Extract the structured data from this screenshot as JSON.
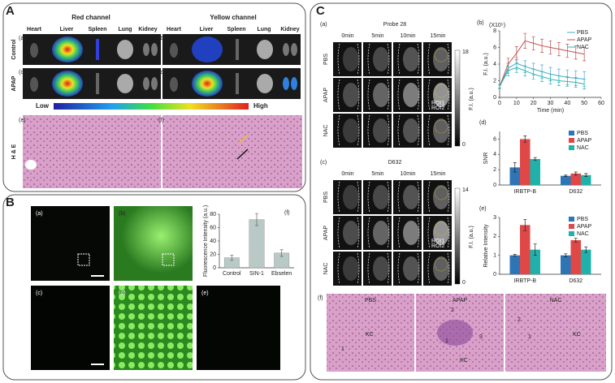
{
  "panel_a": {
    "label": "A",
    "headers": [
      "Red channel",
      "Yellow channel"
    ],
    "organs": [
      "Heart",
      "Liver",
      "Spleen",
      "Lung",
      "Kidney"
    ],
    "sublabels": [
      "(a)",
      "(b)",
      "(c)",
      "(d)",
      "(e)",
      "(f)"
    ],
    "rows": [
      "Control",
      "APAP",
      "H & E"
    ],
    "scale": [
      "Low",
      "High"
    ]
  },
  "panel_b": {
    "label": "B",
    "sublabels": [
      "(a)",
      "(b)",
      "(c)",
      "(d)",
      "(e)"
    ]
  },
  "panel_c": {
    "label": "C",
    "imaging": [
      {
        "sublabel": "(a)",
        "title": "Probe 28",
        "colorbar": [
          18,
          0
        ]
      },
      {
        "sublabel": "(c)",
        "title": "D632",
        "colorbar": [
          14,
          0
        ]
      }
    ],
    "times": [
      "0min",
      "5min",
      "10min",
      "15min"
    ],
    "groups": [
      "PBS",
      "APAP",
      "NAC"
    ],
    "colorbar_label": "F.I. (a.u.)",
    "roi": [
      "ROI1",
      "ROI2"
    ],
    "histology": {
      "sublabel": "(f)",
      "panels": [
        {
          "title": "PBS",
          "notes": [
            "KC",
            "1"
          ]
        },
        {
          "title": "APAP",
          "notes": [
            "2",
            "1",
            "3",
            "KC"
          ]
        },
        {
          "title": "NAC",
          "notes": [
            "2",
            "1",
            "KC"
          ]
        }
      ]
    }
  },
  "chart_data": [
    {
      "type": "bar",
      "label": "(f)",
      "ylabel": "Fluorescence Intensity (a.u.)",
      "categories": [
        "Control",
        "SIN-1",
        "Ebselen"
      ],
      "values": [
        15,
        72,
        22
      ],
      "errors": [
        4,
        9,
        5
      ],
      "color": "#b9c9c5",
      "ylim": [
        0,
        80
      ],
      "yticks": [
        0,
        20,
        40,
        60,
        80
      ]
    },
    {
      "type": "line",
      "label": "(b)",
      "y_multiplier": "(X10⁵)",
      "ylabel": "F.I. (a.u.)",
      "xlabel": "Time (min)",
      "x": [
        0,
        5,
        10,
        15,
        20,
        25,
        30,
        35,
        40,
        45,
        50
      ],
      "series": [
        {
          "name": "PBS",
          "color": "#4aa8d8",
          "values": [
            1.3,
            3.5,
            4.1,
            3.7,
            3.4,
            3.1,
            2.8,
            2.6,
            2.4,
            2.3,
            2.2
          ],
          "errors": [
            0.2,
            0.6,
            0.7,
            0.7,
            0.7,
            0.8,
            0.8,
            0.8,
            0.9,
            0.9,
            0.9
          ]
        },
        {
          "name": "APAP",
          "color": "#c0504d",
          "values": [
            1.3,
            4.0,
            5.3,
            6.8,
            6.5,
            6.2,
            6.0,
            5.8,
            5.6,
            5.4,
            5.2
          ],
          "errors": [
            0.2,
            0.7,
            0.8,
            0.9,
            0.8,
            0.8,
            0.8,
            0.8,
            0.8,
            0.8,
            0.8
          ]
        },
        {
          "name": "NAC",
          "color": "#2bb5b0",
          "values": [
            1.3,
            3.2,
            3.6,
            3.2,
            2.8,
            2.5,
            2.2,
            2.0,
            1.9,
            1.8,
            1.6
          ],
          "errors": [
            0.2,
            0.6,
            0.6,
            0.6,
            0.6,
            0.6,
            0.6,
            0.6,
            0.6,
            0.6,
            0.6
          ]
        }
      ],
      "xlim": [
        0,
        60
      ],
      "xticks": [
        0,
        10,
        20,
        30,
        40,
        50,
        60
      ],
      "ylim": [
        0,
        8
      ],
      "yticks": [
        0,
        2,
        4,
        6,
        8
      ],
      "legend": "upper-right"
    },
    {
      "type": "grouped_bar",
      "label": "(d)",
      "ylabel": "SNR",
      "categories": [
        "IRBTP-B",
        "D632"
      ],
      "series": [
        {
          "name": "PBS",
          "color": "#2e75b6",
          "values": [
            2.3,
            1.2
          ],
          "errors": [
            0.6,
            0.1
          ]
        },
        {
          "name": "APAP",
          "color": "#e04848",
          "values": [
            6.0,
            1.5
          ],
          "errors": [
            0.4,
            0.2
          ]
        },
        {
          "name": "NAC",
          "color": "#20b2aa",
          "values": [
            3.4,
            1.3
          ],
          "errors": [
            0.2,
            0.2
          ]
        }
      ],
      "ylim": [
        0,
        7
      ],
      "yticks": [
        0,
        2,
        4,
        6
      ],
      "legend": "upper-right"
    },
    {
      "type": "grouped_bar",
      "label": "(e)",
      "ylabel": "Relative Intensity",
      "categories": [
        "IRBTP-B",
        "D632"
      ],
      "series": [
        {
          "name": "PBS",
          "color": "#2e75b6",
          "values": [
            1.0,
            1.0
          ],
          "errors": [
            0.05,
            0.08
          ]
        },
        {
          "name": "APAP",
          "color": "#e04848",
          "values": [
            2.6,
            1.8
          ],
          "errors": [
            0.3,
            0.1
          ]
        },
        {
          "name": "NAC",
          "color": "#20b2aa",
          "values": [
            1.3,
            1.3
          ],
          "errors": [
            0.3,
            0.15
          ]
        }
      ],
      "ylim": [
        0,
        3
      ],
      "yticks": [
        0,
        1,
        2,
        3
      ],
      "legend": "upper-right"
    }
  ]
}
